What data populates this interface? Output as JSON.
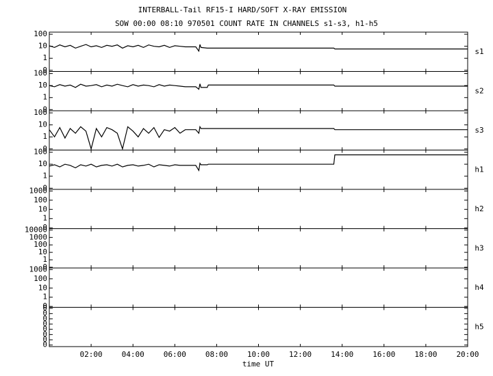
{
  "chart_data": {
    "type": "line",
    "title": "INTERBALL-Tail RF15-I HARD/SOFT X-RAY EMISSION",
    "subtitle": "SOW 00:00 08:10 970501  COUNT RATE IN CHANNELS s1-s3, h1-h5",
    "xlabel": "time UT",
    "xlim": [
      0,
      20
    ],
    "xticks": [
      {
        "value": 2,
        "label": "02:00"
      },
      {
        "value": 4,
        "label": "04:00"
      },
      {
        "value": 6,
        "label": "06:00"
      },
      {
        "value": 8,
        "label": "08:00"
      },
      {
        "value": 10,
        "label": "10:00"
      },
      {
        "value": 12,
        "label": "12:00"
      },
      {
        "value": 14,
        "label": "14:00"
      },
      {
        "value": 16,
        "label": "16:00"
      },
      {
        "value": 18,
        "label": "18:00"
      },
      {
        "value": 20,
        "label": "20:00"
      }
    ],
    "color": "#000000",
    "x": [
      0,
      0.25,
      0.5,
      0.75,
      1,
      1.25,
      1.5,
      1.75,
      2,
      2.25,
      2.5,
      2.75,
      3,
      3.25,
      3.5,
      3.75,
      4,
      4.25,
      4.5,
      4.75,
      5,
      5.25,
      5.5,
      5.75,
      6,
      6.25,
      6.5,
      7.0,
      7.15,
      7.2,
      7.25,
      7.55,
      7.6,
      13.6,
      13.65,
      20
    ],
    "panels": [
      {
        "name": "s1",
        "scale": "log",
        "ylim": [
          0.08,
          150
        ],
        "yticks": [
          {
            "value": 0.1,
            "label": "0"
          },
          1,
          10,
          100
        ],
        "values": [
          11,
          8,
          13,
          9,
          12,
          7,
          10,
          14,
          9,
          11,
          8,
          12,
          10,
          13,
          7,
          11,
          9,
          12,
          8,
          13,
          10,
          9,
          12,
          8,
          11,
          10,
          9,
          9,
          4,
          14,
          8,
          7,
          7,
          7,
          6,
          6
        ]
      },
      {
        "name": "s2",
        "scale": "log",
        "ylim": [
          0.08,
          150
        ],
        "yticks": [
          {
            "value": 0.1,
            "label": "0"
          },
          1,
          10,
          100
        ],
        "values": [
          10,
          8,
          12,
          9,
          11,
          7,
          13,
          9,
          10,
          12,
          8,
          11,
          9,
          13,
          10,
          8,
          12,
          9,
          11,
          10,
          8,
          12,
          9,
          11,
          10,
          9,
          8,
          8,
          5,
          14,
          7,
          7,
          11,
          11,
          9,
          9
        ]
      },
      {
        "name": "s3",
        "scale": "log",
        "ylim": [
          0.08,
          150
        ],
        "yticks": [
          {
            "value": 0.1,
            "label": "0"
          },
          1,
          10,
          100
        ],
        "values": [
          4,
          1,
          6,
          0.8,
          5,
          2,
          7,
          3,
          0.1,
          5,
          1,
          6,
          4,
          2,
          0.1,
          7,
          3,
          1,
          5,
          2,
          6,
          0.9,
          4,
          3,
          6,
          2,
          4,
          4,
          2,
          7,
          5,
          5,
          5,
          5,
          4,
          4
        ]
      },
      {
        "name": "h1",
        "scale": "log",
        "ylim": [
          0.08,
          150
        ],
        "yticks": [
          {
            "value": 0.1,
            "label": "0"
          },
          1,
          10,
          100
        ],
        "values": [
          7,
          9,
          6,
          10,
          8,
          5,
          9,
          7,
          10,
          6,
          8,
          9,
          7,
          10,
          6,
          8,
          9,
          7,
          8,
          10,
          6,
          9,
          8,
          7,
          9,
          8,
          8,
          8,
          3,
          12,
          9,
          9,
          10,
          10,
          60,
          60
        ]
      },
      {
        "name": "h2",
        "scale": "log",
        "ylim": [
          0.08,
          1500
        ],
        "yticks": [
          {
            "value": 0.1,
            "label": "0"
          },
          1,
          10,
          100,
          1000
        ]
      },
      {
        "name": "h3",
        "scale": "log",
        "ylim": [
          0.08,
          15000
        ],
        "yticks": [
          {
            "value": 0.1,
            "label": "0"
          },
          1,
          10,
          100,
          1000,
          10000
        ]
      },
      {
        "name": "h4",
        "scale": "log",
        "ylim": [
          0.08,
          1500
        ],
        "yticks": [
          {
            "value": 0.1,
            "label": "0"
          },
          1,
          10,
          100,
          1000
        ]
      },
      {
        "name": "h5",
        "scale": "linear",
        "ylim": [
          -3e-05,
          0.00072
        ],
        "yticks": [
          {
            "value": 0,
            "label": "0"
          },
          {
            "value": 0.0001,
            "label": "0"
          },
          {
            "value": 0.0002,
            "label": "0"
          },
          {
            "value": 0.0003,
            "label": "0"
          },
          {
            "value": 0.0004,
            "label": "0"
          },
          {
            "value": 0.0005,
            "label": "0"
          },
          {
            "value": 0.0006,
            "label": "0"
          },
          {
            "value": 0.0007,
            "label": "0"
          }
        ]
      }
    ]
  }
}
